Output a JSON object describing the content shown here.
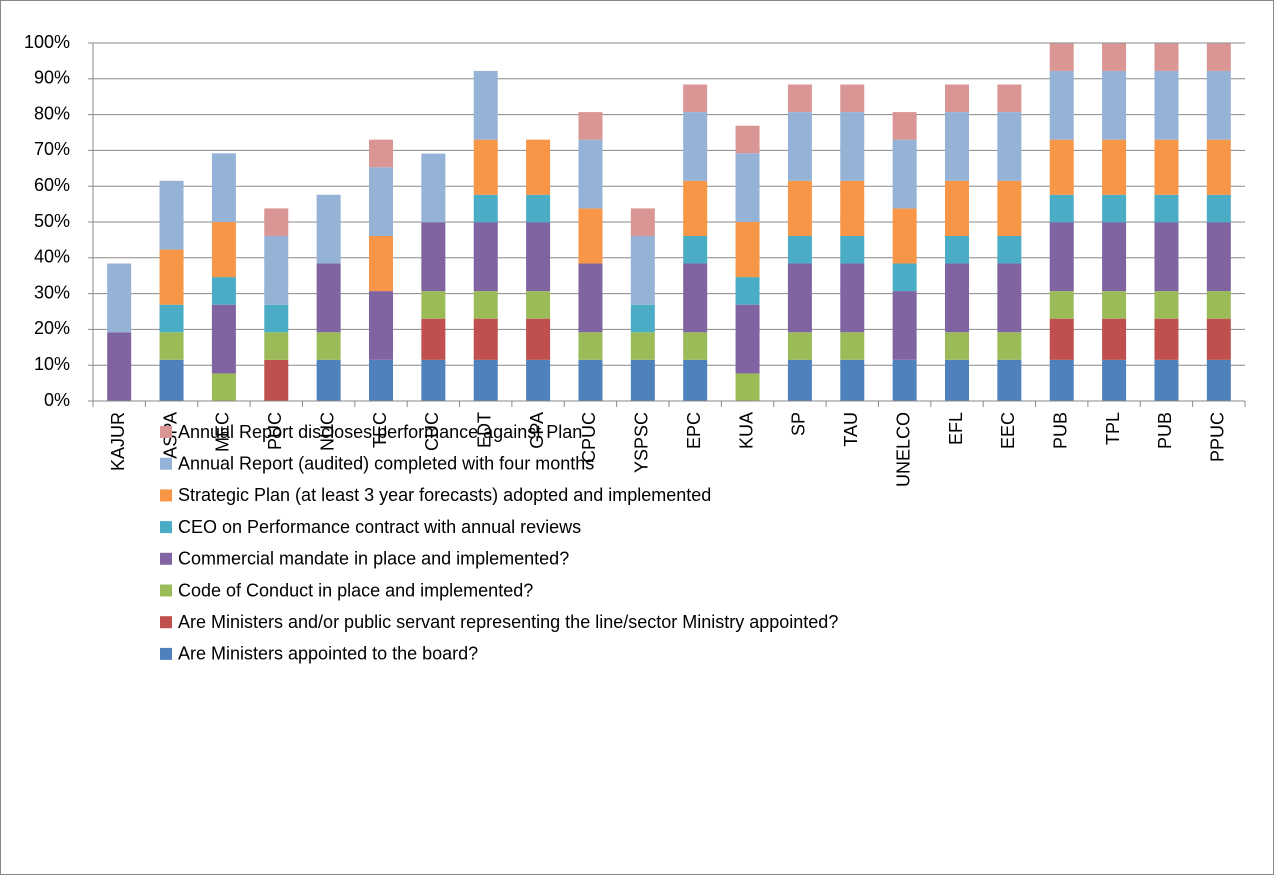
{
  "chart_data": {
    "type": "stacked_bar",
    "categories": [
      "KAJUR",
      "ASPA",
      "MEC",
      "PUC",
      "NUC",
      "TEC",
      "CUC",
      "EDT",
      "GPA",
      "CPUC",
      "YSPSC",
      "EPC",
      "KUA",
      "SP",
      "TAU",
      "UNELCO",
      "EFL",
      "EEC",
      "PUB",
      "TPL",
      "PUB",
      "PPUC"
    ],
    "series": [
      {
        "name": "Are Ministers appointed to the board?",
        "color": "#4f81bd",
        "values": [
          0,
          11.5,
          0,
          0,
          11.5,
          11.5,
          11.5,
          11.5,
          11.5,
          11.5,
          11.5,
          11.5,
          0,
          11.5,
          11.5,
          11.5,
          11.5,
          11.5,
          11.5,
          11.5,
          11.5,
          11.5
        ]
      },
      {
        "name": "Are Ministers and/or public servant representing the line/sector Ministry appointed?",
        "color": "#c0504d",
        "values": [
          0,
          0,
          0,
          11.5,
          0,
          0,
          11.5,
          11.5,
          11.5,
          0,
          0,
          0,
          0,
          0,
          0,
          0,
          0,
          0,
          11.5,
          11.5,
          11.5,
          11.5
        ]
      },
      {
        "name": "Code of Conduct in place and implemented?",
        "color": "#9bbb59",
        "values": [
          0,
          7.7,
          7.7,
          7.7,
          7.7,
          0,
          7.7,
          7.7,
          7.7,
          7.7,
          7.7,
          7.7,
          7.7,
          7.7,
          7.7,
          0,
          7.7,
          7.7,
          7.7,
          7.7,
          7.7,
          7.7
        ]
      },
      {
        "name": "Commercial mandate in place and implemented?",
        "color": "#8064a2",
        "values": [
          19.2,
          0,
          19.2,
          0,
          19.2,
          19.2,
          19.2,
          19.2,
          19.2,
          19.2,
          0,
          19.2,
          19.2,
          19.2,
          19.2,
          19.2,
          19.2,
          19.2,
          19.2,
          19.2,
          19.2,
          19.2
        ]
      },
      {
        "name": "CEO on Performance contract with annual reviews",
        "color": "#4bacc6",
        "values": [
          0,
          7.7,
          7.7,
          7.7,
          0,
          0,
          0,
          7.7,
          7.7,
          0,
          7.7,
          7.7,
          7.7,
          7.7,
          7.7,
          7.7,
          7.7,
          7.7,
          7.7,
          7.7,
          7.7,
          7.7
        ]
      },
      {
        "name": "Strategic Plan (at least 3 year forecasts) adopted and implemented",
        "color": "#f79646",
        "values": [
          0,
          15.4,
          15.4,
          0,
          0,
          15.4,
          0,
          15.4,
          15.4,
          15.4,
          0,
          15.4,
          15.4,
          15.4,
          15.4,
          15.4,
          15.4,
          15.4,
          15.4,
          15.4,
          15.4,
          15.4
        ]
      },
      {
        "name": "Annual Report (audited) completed with four months",
        "color": "#95b3d7",
        "values": [
          19.2,
          19.2,
          19.2,
          19.2,
          19.2,
          19.2,
          19.2,
          19.2,
          0,
          19.2,
          19.2,
          19.2,
          19.2,
          19.2,
          19.2,
          19.2,
          19.2,
          19.2,
          19.2,
          19.2,
          19.2,
          19.2
        ]
      },
      {
        "name": "Annual Report discloses performance against Plan",
        "color": "#d99694",
        "values": [
          0,
          0,
          0,
          7.7,
          0,
          7.7,
          0,
          0,
          0,
          7.7,
          7.7,
          7.7,
          7.7,
          7.7,
          7.7,
          7.7,
          7.7,
          7.7,
          7.7,
          7.7,
          7.7,
          7.7
        ]
      }
    ],
    "ylim": [
      0,
      100
    ],
    "yticks": [
      {
        "value": 0,
        "label": "0%"
      },
      {
        "value": 10,
        "label": "10%"
      },
      {
        "value": 20,
        "label": "20%"
      },
      {
        "value": 30,
        "label": "30%"
      },
      {
        "value": 40,
        "label": "40%"
      },
      {
        "value": 50,
        "label": "50%"
      },
      {
        "value": 60,
        "label": "60%"
      },
      {
        "value": 70,
        "label": "70%"
      },
      {
        "value": 80,
        "label": "80%"
      },
      {
        "value": 90,
        "label": "90%"
      },
      {
        "value": 100,
        "label": "100%"
      }
    ],
    "grid": true
  }
}
